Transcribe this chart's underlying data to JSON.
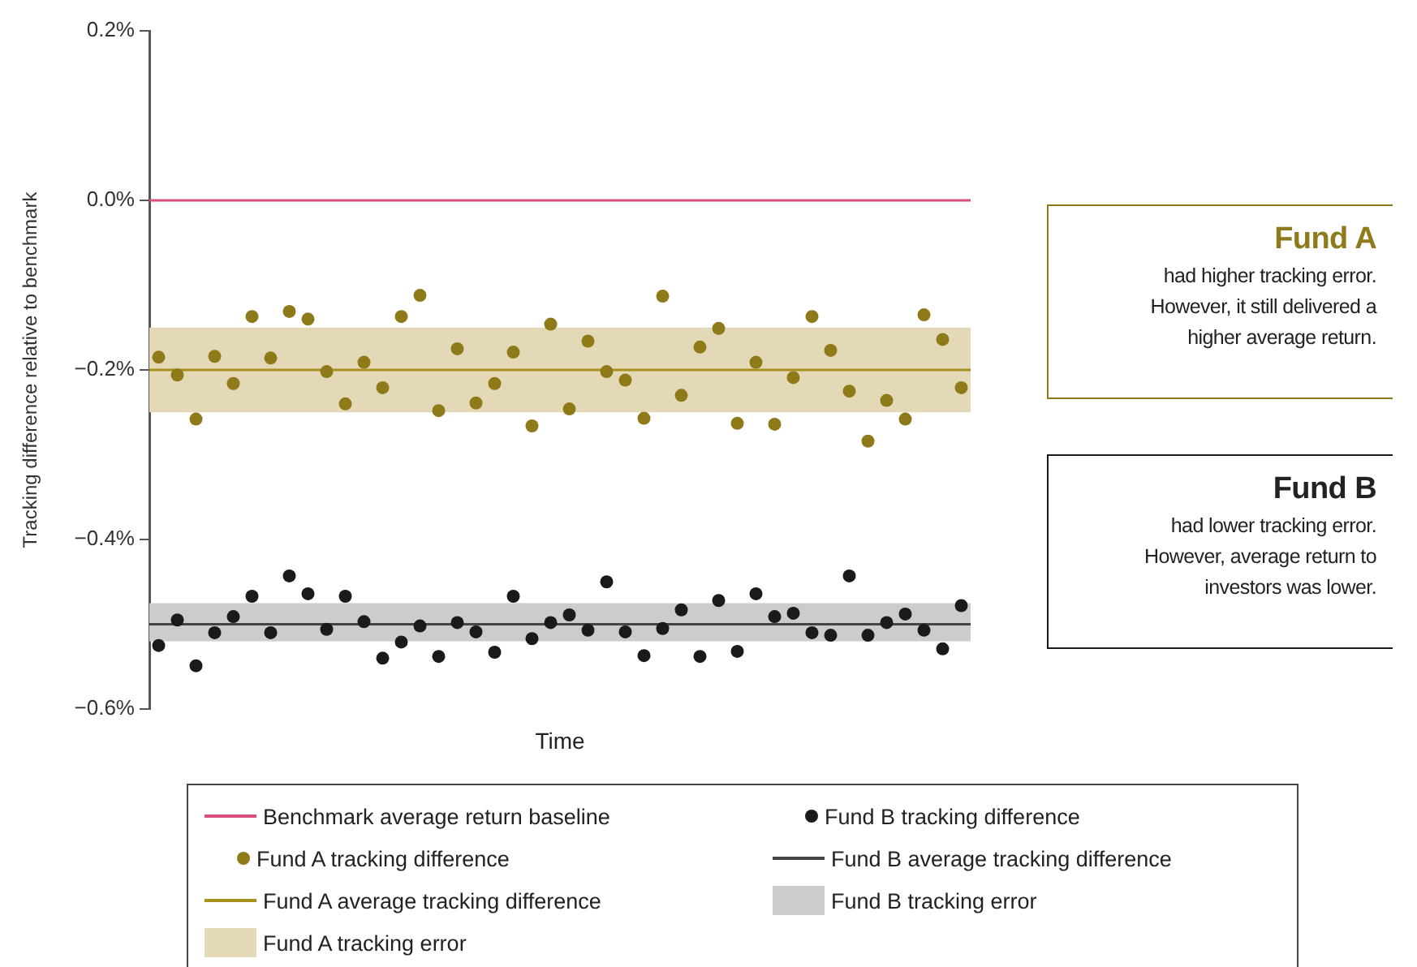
{
  "chart_data": {
    "type": "scatter",
    "ylabel": "Tracking difference relative to benchmark",
    "xlabel": "Time",
    "categories": [
      null,
      null,
      null,
      null,
      null,
      null,
      null,
      null,
      null,
      null,
      null,
      null,
      null,
      null,
      null,
      null,
      null,
      null,
      null,
      null,
      null,
      null,
      null,
      null,
      null,
      null,
      null,
      null,
      null,
      null,
      null,
      null,
      null,
      null,
      null,
      null,
      null,
      null,
      null,
      null,
      null,
      null,
      null,
      null
    ],
    "ylim": [
      -0.6,
      0.2
    ],
    "yticks": [
      {
        "value": 0.2,
        "label": "0.2%"
      },
      {
        "value": 0,
        "label": "0.0%"
      },
      {
        "value": -0.2,
        "label": "−0.2%"
      },
      {
        "value": -0.4,
        "label": "−0.4%"
      },
      {
        "value": -0.6,
        "label": "−0.6%"
      }
    ],
    "series": [
      {
        "name": "Fund A tracking difference",
        "color": "#8f7a1a",
        "values": [
          -0.185,
          -0.206,
          -0.258,
          -0.184,
          -0.216,
          -0.137,
          -0.186,
          -0.131,
          -0.14,
          -0.202,
          -0.24,
          -0.191,
          -0.221,
          -0.137,
          -0.112,
          -0.248,
          -0.175,
          -0.239,
          -0.216,
          -0.179,
          -0.266,
          -0.146,
          -0.246,
          -0.166,
          -0.202,
          -0.212,
          -0.257,
          -0.113,
          -0.23,
          -0.173,
          -0.151,
          -0.263,
          -0.191,
          -0.264,
          -0.209,
          -0.137,
          -0.177,
          -0.225,
          -0.284,
          -0.236,
          -0.258,
          -0.135,
          -0.164,
          -0.221
        ]
      },
      {
        "name": "Fund B tracking difference",
        "color": "#1a1a1a",
        "values": [
          -0.525,
          -0.495,
          -0.549,
          -0.51,
          -0.491,
          -0.467,
          -0.51,
          -0.443,
          -0.464,
          -0.506,
          -0.467,
          -0.497,
          -0.54,
          -0.521,
          -0.502,
          -0.538,
          -0.498,
          -0.509,
          -0.533,
          -0.467,
          -0.517,
          -0.498,
          -0.489,
          -0.507,
          -0.45,
          -0.509,
          -0.537,
          -0.505,
          -0.483,
          -0.538,
          -0.472,
          -0.532,
          -0.464,
          -0.491,
          -0.487,
          -0.51,
          -0.513,
          -0.443,
          -0.513,
          -0.498,
          -0.488,
          -0.507,
          -0.529,
          -0.478
        ]
      }
    ],
    "ref_lines": [
      {
        "axis": "y",
        "value": 0,
        "label": "Benchmark average return baseline",
        "color": "#d94f7f"
      },
      {
        "axis": "y",
        "value": -0.2,
        "label": "Fund A average tracking difference",
        "color": "#a8901e"
      },
      {
        "axis": "y",
        "value": -0.5,
        "label": "Fund B average tracking difference",
        "color": "#444444"
      }
    ],
    "bands": [
      {
        "axis": "y",
        "from": -0.25,
        "to": -0.15,
        "label": "Fund A tracking error",
        "color": "#e3d9b6"
      },
      {
        "axis": "y",
        "from": -0.52,
        "to": -0.475,
        "label": "Fund B tracking error",
        "color": "#cccccc"
      }
    ],
    "annotations": [
      "Fund A",
      "had higher tracking error. However, it still delivered a higher average return.",
      "Fund B",
      "had lower tracking error. However, average return to investors was lower."
    ],
    "marker": "circle",
    "grid": false,
    "legend": "bottom"
  }
}
